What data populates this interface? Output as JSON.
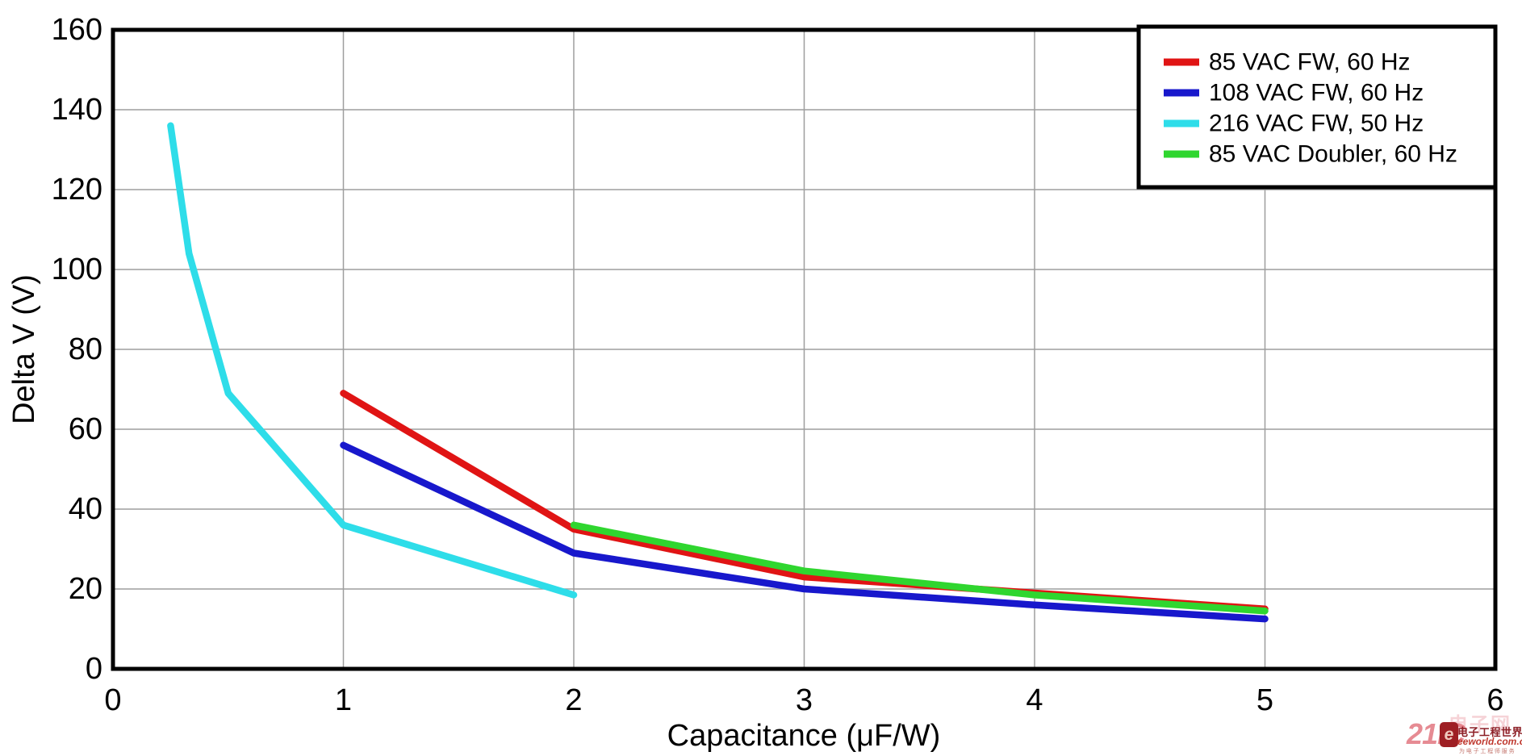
{
  "chart_data": {
    "type": "line",
    "title": "",
    "xlabel": "Capacitance (μF/W)",
    "ylabel": "Delta V (V)",
    "xlim": [
      0,
      6
    ],
    "ylim": [
      0,
      160
    ],
    "xticks": [
      0,
      1,
      2,
      3,
      4,
      5,
      6
    ],
    "yticks": [
      0,
      20,
      40,
      60,
      80,
      100,
      120,
      140,
      160
    ],
    "grid": true,
    "legend_position": "top-right",
    "series": [
      {
        "name": "85 VAC FW, 60 Hz",
        "color": "#e01414",
        "points": [
          [
            1,
            69
          ],
          [
            2,
            35
          ],
          [
            3,
            23
          ],
          [
            4,
            19
          ],
          [
            5,
            15
          ]
        ]
      },
      {
        "name": "108 VAC FW, 60 Hz",
        "color": "#1818cc",
        "points": [
          [
            1,
            56
          ],
          [
            2,
            29
          ],
          [
            3,
            20
          ],
          [
            4,
            16
          ],
          [
            5,
            12.5
          ]
        ]
      },
      {
        "name": "216 VAC FW, 50 Hz",
        "color": "#2edde9",
        "points": [
          [
            0.25,
            136
          ],
          [
            0.33,
            104
          ],
          [
            0.5,
            69
          ],
          [
            1,
            36
          ],
          [
            2,
            18.5
          ]
        ]
      },
      {
        "name": "85 VAC Doubler, 60 Hz",
        "color": "#2fd62f",
        "points": [
          [
            2,
            36
          ],
          [
            3,
            24.5
          ],
          [
            4,
            18.5
          ],
          [
            5,
            14.5
          ]
        ]
      }
    ]
  },
  "watermark": {
    "brand_text": "21IC",
    "brand_faint_text": "电子网",
    "logo_glyph": "e",
    "site_name": "电子工程世界",
    "site_url": "eeworld.com.cn",
    "tagline": "为电子工程师服务"
  }
}
